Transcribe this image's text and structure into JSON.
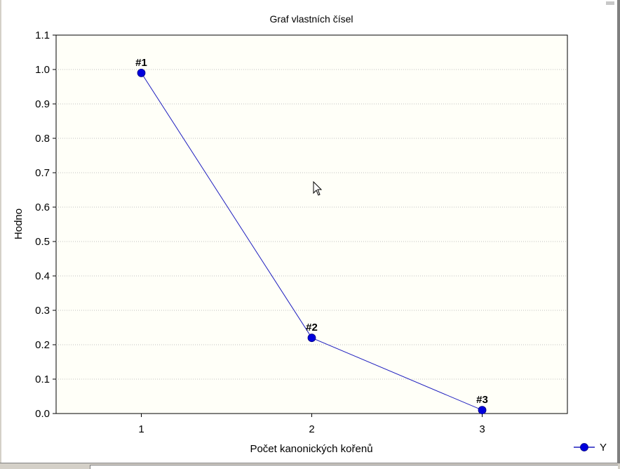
{
  "chart_data": {
    "type": "line",
    "title": "Graf vlastních čísel",
    "xlabel": "Počet kanonických kořenů",
    "ylabel": "Hodno",
    "x": [
      1,
      2,
      3
    ],
    "x_ticks": [
      "1",
      "2",
      "3"
    ],
    "xlim": [
      0.5,
      3.5
    ],
    "ylim": [
      0.0,
      1.1
    ],
    "y_ticks": [
      "0.0",
      "0.1",
      "0.2",
      "0.3",
      "0.4",
      "0.5",
      "0.6",
      "0.7",
      "0.8",
      "0.9",
      "1.0",
      "1.1"
    ],
    "grid": true,
    "legend_position": "bottom-right",
    "series": [
      {
        "name": "Y",
        "color": "#0000cc",
        "values": [
          0.99,
          0.22,
          0.01
        ],
        "point_labels": [
          "#1",
          "#2",
          "#3"
        ]
      }
    ]
  },
  "colors": {
    "plot_background": "#fffff8",
    "series_line": "#1f1fbf",
    "marker_fill": "#0000dd",
    "grid": "#c0c0c0"
  },
  "icons": {
    "cursor": "arrow-cursor-icon"
  }
}
